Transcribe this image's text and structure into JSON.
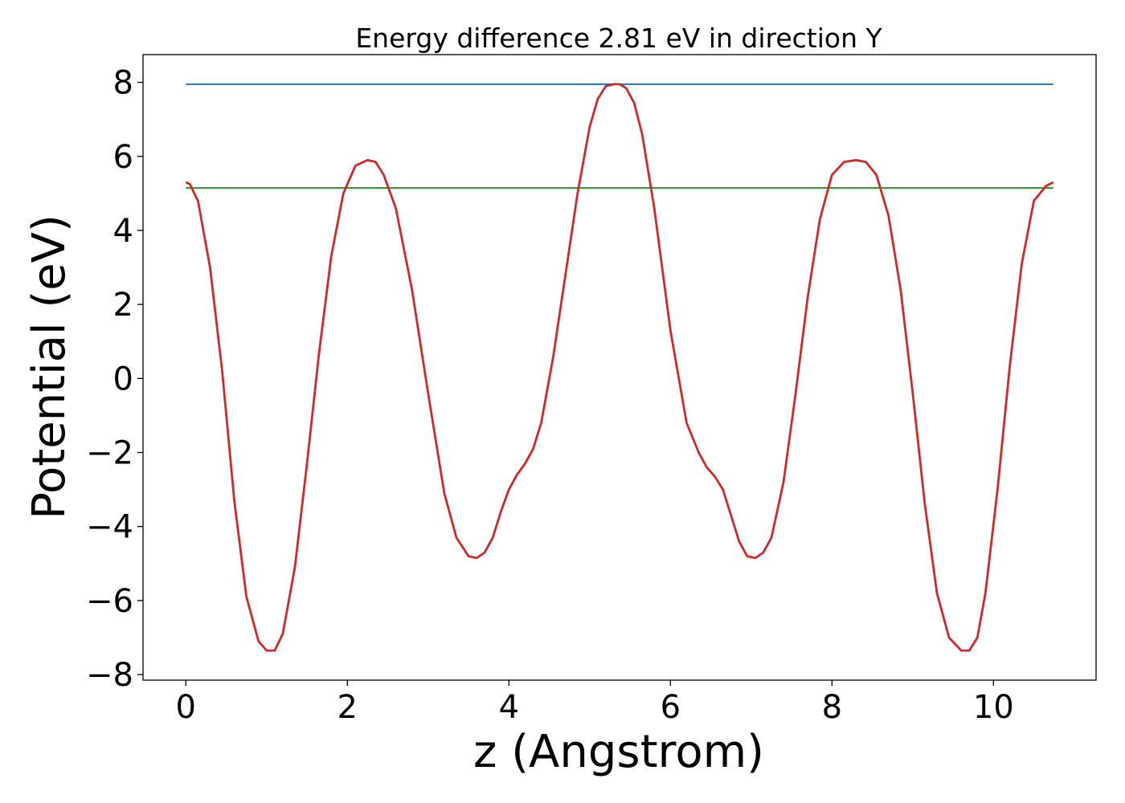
{
  "chart_data": {
    "type": "line",
    "title": "Energy difference 2.81 eV in direction Y",
    "xlabel": "z (Angstrom)",
    "ylabel": "Potential (eV)",
    "xlim": [
      -0.53,
      11.27
    ],
    "ylim": [
      -8.15,
      8.75
    ],
    "xticks": [
      0,
      2,
      4,
      6,
      8,
      10
    ],
    "xtick_labels": [
      "0",
      "2",
      "4",
      "6",
      "8",
      "10"
    ],
    "yticks": [
      -8,
      -6,
      -4,
      -2,
      0,
      2,
      4,
      6,
      8
    ],
    "ytick_labels": [
      "−8",
      "−6",
      "−4",
      "−2",
      "0",
      "2",
      "4",
      "6",
      "8"
    ],
    "grid": false,
    "series": [
      {
        "color": "#1f77b4",
        "x": [
          0,
          10.74
        ],
        "y": [
          7.95,
          7.95
        ]
      },
      {
        "color": "#2ca02c",
        "x": [
          0,
          10.74
        ],
        "y": [
          5.15,
          5.15
        ]
      },
      {
        "color": "#d62728",
        "x": [
          0.0,
          0.05,
          0.15,
          0.3,
          0.45,
          0.6,
          0.75,
          0.9,
          1.0,
          1.1,
          1.2,
          1.35,
          1.5,
          1.65,
          1.8,
          1.95,
          2.1,
          2.25,
          2.35,
          2.45,
          2.6,
          2.8,
          3.0,
          3.2,
          3.35,
          3.5,
          3.6,
          3.7,
          3.8,
          3.9,
          4.0,
          4.1,
          4.2,
          4.3,
          4.4,
          4.55,
          4.7,
          4.85,
          5.0,
          5.1,
          5.2,
          5.3,
          5.37,
          5.45,
          5.55,
          5.65,
          5.8,
          6.0,
          6.2,
          6.35,
          6.45,
          6.55,
          6.65,
          6.75,
          6.85,
          6.95,
          7.05,
          7.15,
          7.25,
          7.4,
          7.55,
          7.7,
          7.85,
          8.0,
          8.15,
          8.3,
          8.42,
          8.55,
          8.7,
          8.85,
          9.0,
          9.15,
          9.3,
          9.45,
          9.6,
          9.7,
          9.8,
          9.9,
          10.05,
          10.2,
          10.35,
          10.5,
          10.65,
          10.74
        ],
        "y": [
          5.3,
          5.25,
          4.8,
          3.0,
          0.2,
          -3.3,
          -5.9,
          -7.1,
          -7.35,
          -7.35,
          -6.9,
          -5.1,
          -2.3,
          0.7,
          3.3,
          5.0,
          5.75,
          5.9,
          5.85,
          5.5,
          4.6,
          2.4,
          -0.4,
          -3.1,
          -4.3,
          -4.8,
          -4.85,
          -4.7,
          -4.3,
          -3.6,
          -3.0,
          -2.6,
          -2.3,
          -1.9,
          -1.2,
          0.6,
          2.8,
          5.0,
          6.8,
          7.55,
          7.9,
          7.95,
          7.95,
          7.85,
          7.45,
          6.6,
          4.6,
          1.3,
          -1.2,
          -2.0,
          -2.4,
          -2.65,
          -3.0,
          -3.7,
          -4.4,
          -4.8,
          -4.85,
          -4.7,
          -4.3,
          -2.8,
          -0.4,
          2.2,
          4.3,
          5.5,
          5.85,
          5.9,
          5.85,
          5.5,
          4.4,
          2.4,
          -0.4,
          -3.4,
          -5.8,
          -7.0,
          -7.35,
          -7.35,
          -7.0,
          -5.8,
          -3.0,
          0.3,
          3.1,
          4.8,
          5.2,
          5.3
        ]
      }
    ]
  }
}
